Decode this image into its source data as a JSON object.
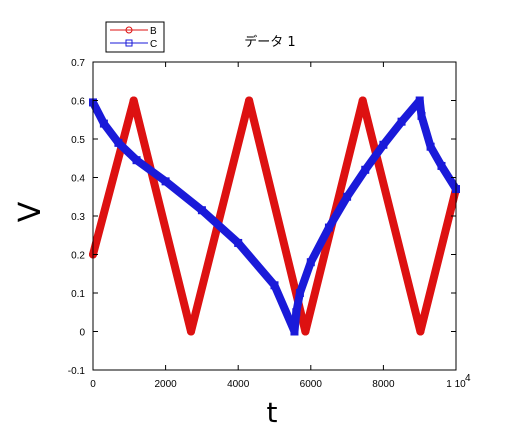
{
  "chart_data": {
    "type": "line",
    "title": "データ 1",
    "xlabel": "t",
    "ylabel": "V",
    "xlim": [
      0,
      10000
    ],
    "ylim": [
      -0.1,
      0.7
    ],
    "x_ticks": [
      0,
      2000,
      4000,
      6000,
      8000,
      10000
    ],
    "x_tick_labels": [
      "0",
      "2000",
      "4000",
      "6000",
      "8000",
      "1 10"
    ],
    "x_tick_exponent": "4",
    "y_ticks": [
      -0.1,
      0,
      0.1,
      0.2,
      0.3,
      0.4,
      0.5,
      0.6,
      0.7
    ],
    "y_tick_labels": [
      "-0.1",
      "0",
      "0.1",
      "0.2",
      "0.3",
      "0.4",
      "0.5",
      "0.6",
      "0.7"
    ],
    "grid": false,
    "legend_position": "top-left",
    "series": [
      {
        "name": "B",
        "color": "#dd1111",
        "marker": "circle",
        "x": [
          0,
          1120,
          2700,
          4300,
          5850,
          7430,
          9020,
          10000
        ],
        "y": [
          0.2,
          0.6,
          0.0,
          0.6,
          0.0,
          0.6,
          0.0,
          0.37
        ]
      },
      {
        "name": "C",
        "color": "#1a1ad9",
        "marker": "square",
        "x": [
          0,
          300,
          700,
          1200,
          2000,
          3000,
          4000,
          5000,
          5550,
          5600,
          5700,
          6000,
          6500,
          7000,
          7500,
          8000,
          8500,
          9000,
          9050,
          9300,
          9600,
          10000
        ],
        "y": [
          0.595,
          0.54,
          0.49,
          0.445,
          0.39,
          0.315,
          0.23,
          0.12,
          0.0,
          0.05,
          0.1,
          0.18,
          0.27,
          0.35,
          0.42,
          0.485,
          0.545,
          0.6,
          0.56,
          0.48,
          0.43,
          0.37
        ]
      }
    ]
  }
}
